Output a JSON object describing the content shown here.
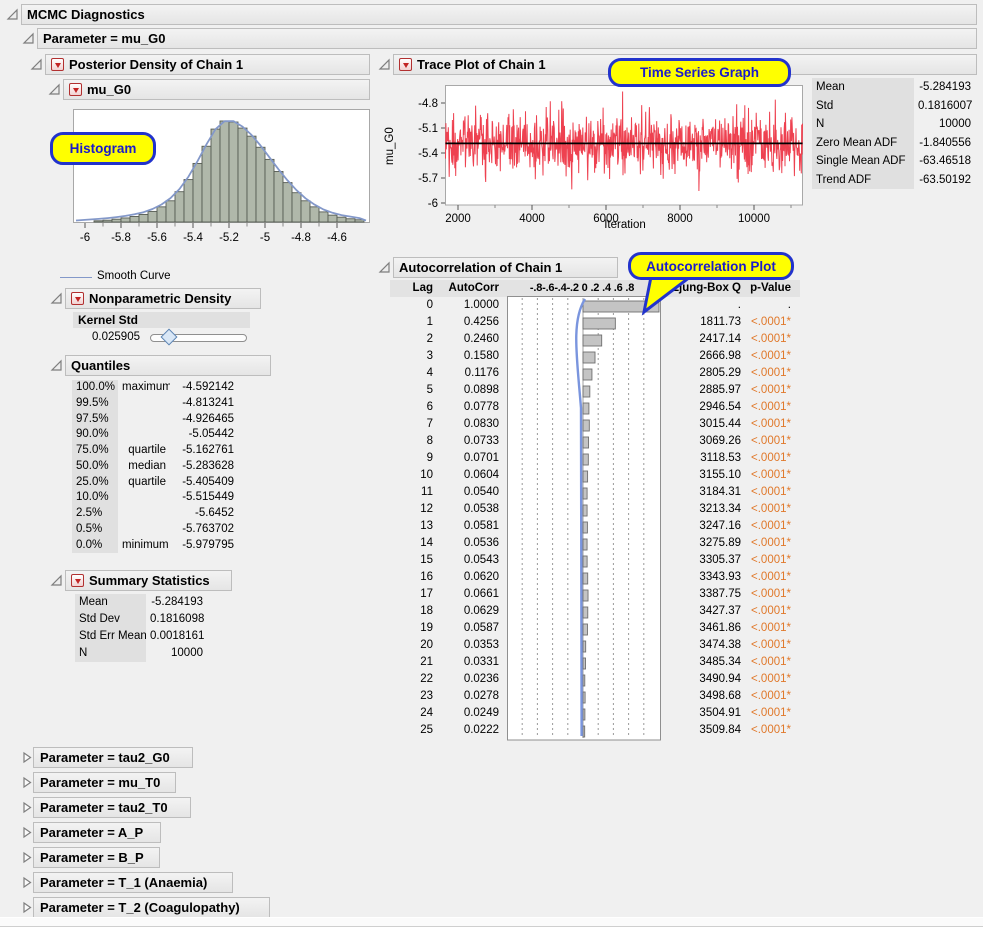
{
  "headers": {
    "main": "MCMC Diagnostics",
    "parameter": "Parameter = mu_G0",
    "posterior": "Posterior Density of Chain 1",
    "mu_g0": "mu_G0",
    "trace": "Trace Plot of Chain 1",
    "autocorr": "Autocorrelation of Chain 1",
    "nonparametric": "Nonparametric Density",
    "quantiles": "Quantiles",
    "summary": "Summary Statistics"
  },
  "callouts": {
    "histogram": "Histogram",
    "trace": "Time Series Graph",
    "autocorr": "Autocorrelation Plot"
  },
  "legend": {
    "smooth_curve": "Smooth Curve"
  },
  "kernel": {
    "label": "Kernel Std",
    "value": "0.025905"
  },
  "trace_stats": {
    "rows": [
      [
        "Mean",
        "-5.284193"
      ],
      [
        "Std",
        "0.1816007"
      ],
      [
        "N",
        "10000"
      ],
      [
        "Zero Mean ADF",
        "-1.840556"
      ],
      [
        "Single Mean ADF",
        "-63.46518"
      ],
      [
        "Trend ADF",
        "-63.50192"
      ]
    ]
  },
  "quantiles": {
    "rows": [
      [
        "100.0%",
        "maximum",
        "-4.592142"
      ],
      [
        "99.5%",
        "",
        "-4.813241"
      ],
      [
        "97.5%",
        "",
        "-4.926465"
      ],
      [
        "90.0%",
        "",
        "-5.05442"
      ],
      [
        "75.0%",
        "quartile",
        "-5.162761"
      ],
      [
        "50.0%",
        "median",
        "-5.283628"
      ],
      [
        "25.0%",
        "quartile",
        "-5.405409"
      ],
      [
        "10.0%",
        "",
        "-5.515449"
      ],
      [
        "2.5%",
        "",
        "-5.6452"
      ],
      [
        "0.5%",
        "",
        "-5.763702"
      ],
      [
        "0.0%",
        "minimum",
        "-5.979795"
      ]
    ]
  },
  "summary_stats": {
    "rows": [
      [
        "Mean",
        "-5.284193"
      ],
      [
        "Std Dev",
        "0.1816098"
      ],
      [
        "Std Err Mean",
        "0.0018161"
      ],
      [
        "N",
        "10000"
      ]
    ]
  },
  "autocorr_table": {
    "columns": {
      "lag": "Lag",
      "autocorr": "AutoCorr",
      "scale": "-.8-.6-.4-.2 0 .2 .4 .6 .8",
      "ljung": "Ljung-Box Q",
      "pvalue": "p-Value"
    },
    "rows": [
      [
        "0",
        "1.0000",
        ".",
        "."
      ],
      [
        "1",
        "0.4256",
        "1811.73",
        "<.0001*"
      ],
      [
        "2",
        "0.2460",
        "2417.14",
        "<.0001*"
      ],
      [
        "3",
        "0.1580",
        "2666.98",
        "<.0001*"
      ],
      [
        "4",
        "0.1176",
        "2805.29",
        "<.0001*"
      ],
      [
        "5",
        "0.0898",
        "2885.97",
        "<.0001*"
      ],
      [
        "6",
        "0.0778",
        "2946.54",
        "<.0001*"
      ],
      [
        "7",
        "0.0830",
        "3015.44",
        "<.0001*"
      ],
      [
        "8",
        "0.0733",
        "3069.26",
        "<.0001*"
      ],
      [
        "9",
        "0.0701",
        "3118.53",
        "<.0001*"
      ],
      [
        "10",
        "0.0604",
        "3155.10",
        "<.0001*"
      ],
      [
        "11",
        "0.0540",
        "3184.31",
        "<.0001*"
      ],
      [
        "12",
        "0.0538",
        "3213.34",
        "<.0001*"
      ],
      [
        "13",
        "0.0581",
        "3247.16",
        "<.0001*"
      ],
      [
        "14",
        "0.0536",
        "3275.89",
        "<.0001*"
      ],
      [
        "15",
        "0.0543",
        "3305.37",
        "<.0001*"
      ],
      [
        "16",
        "0.0620",
        "3343.93",
        "<.0001*"
      ],
      [
        "17",
        "0.0661",
        "3387.75",
        "<.0001*"
      ],
      [
        "18",
        "0.0629",
        "3427.37",
        "<.0001*"
      ],
      [
        "19",
        "0.0587",
        "3461.86",
        "<.0001*"
      ],
      [
        "20",
        "0.0353",
        "3474.38",
        "<.0001*"
      ],
      [
        "21",
        "0.0331",
        "3485.34",
        "<.0001*"
      ],
      [
        "22",
        "0.0236",
        "3490.94",
        "<.0001*"
      ],
      [
        "23",
        "0.0278",
        "3498.68",
        "<.0001*"
      ],
      [
        "24",
        "0.0249",
        "3504.91",
        "<.0001*"
      ],
      [
        "25",
        "0.0222",
        "3509.84",
        "<.0001*"
      ]
    ]
  },
  "collapsed_parameters": [
    "Parameter = tau2_G0",
    "Parameter = mu_T0",
    "Parameter = tau2_T0",
    "Parameter = A_P",
    "Parameter = B_P",
    "Parameter = T_1 (Anaemia)",
    "Parameter = T_2 (Coagulopathy)"
  ],
  "colors": {
    "callout_bg": "#ffff00",
    "callout_border": "#2233cc",
    "trace_line": "#ee4150",
    "hist_bar": "#b0b8aa",
    "smooth_curve": "#8398c9",
    "pvalue_sig": "#e0782a",
    "label_col_bg": "#e0e0e0"
  },
  "chart_data": [
    {
      "type": "histogram",
      "title": "mu_G0 posterior density",
      "x_ticks": [
        "-6",
        "-5.8",
        "-5.6",
        "-5.4",
        "-5.2",
        "-5",
        "-4.8",
        "-4.6"
      ],
      "bins": {
        "start": -5.95,
        "step": 0.05,
        "rel_heights": [
          0.012,
          0.018,
          0.028,
          0.04,
          0.055,
          0.075,
          0.105,
          0.15,
          0.21,
          0.3,
          0.42,
          0.58,
          0.75,
          0.92,
          1.0,
          0.99,
          0.93,
          0.85,
          0.74,
          0.62,
          0.5,
          0.39,
          0.29,
          0.21,
          0.15,
          0.1,
          0.068,
          0.048,
          0.032,
          0.022
        ]
      },
      "smooth_curve_legend": "Smooth Curve"
    },
    {
      "type": "line",
      "title": "Trace Plot of Chain 1",
      "xlabel": "Iteration",
      "ylabel": "mu_G0",
      "x_ticks": [
        "2000",
        "4000",
        "6000",
        "8000",
        "10000"
      ],
      "y_ticks": [
        "-4.8",
        "-5.1",
        "-5.4",
        "-5.7",
        "-6"
      ],
      "ylim": [
        -6.02,
        -4.58
      ],
      "mean_line": -5.284193,
      "series_mean": -5.284193,
      "series_std": 0.1816007,
      "n_samples": 10000
    },
    {
      "type": "bar",
      "orientation": "horizontal",
      "title": "Autocorrelation of Chain 1",
      "tick_labels": [
        "-.8",
        "-.6",
        "-.4",
        "-.2",
        "0",
        ".2",
        ".4",
        ".6",
        ".8"
      ],
      "tick_values": [
        -0.8,
        -0.6,
        -0.4,
        -0.2,
        0,
        0.2,
        0.4,
        0.6,
        0.8
      ],
      "values": [
        1.0,
        0.4256,
        0.246,
        0.158,
        0.1176,
        0.0898,
        0.0778,
        0.083,
        0.0733,
        0.0701,
        0.0604,
        0.054,
        0.0538,
        0.0581,
        0.0536,
        0.0543,
        0.062,
        0.0661,
        0.0629,
        0.0587,
        0.0353,
        0.0331,
        0.0236,
        0.0278,
        0.0249,
        0.0222
      ]
    }
  ]
}
